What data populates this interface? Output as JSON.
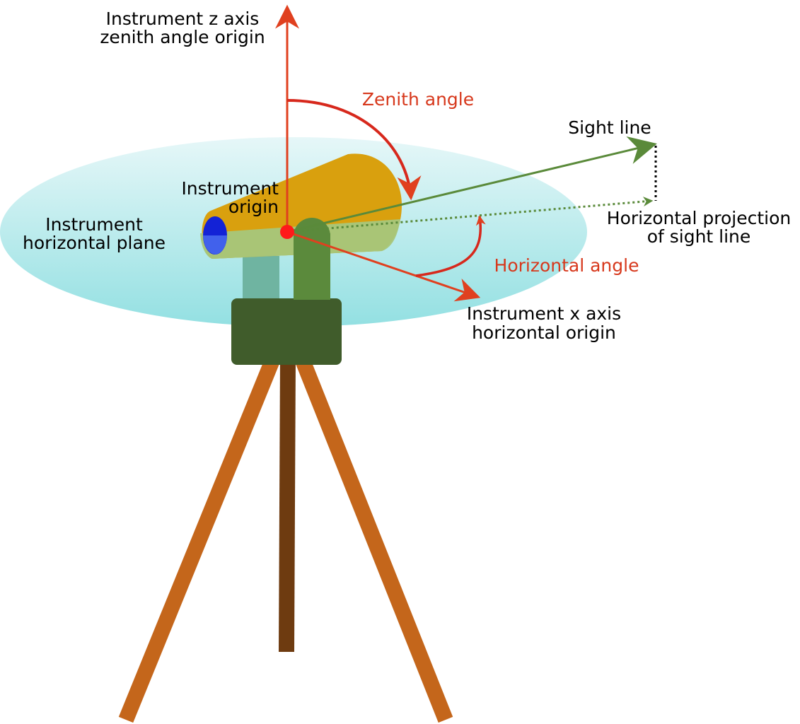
{
  "labels": {
    "z_axis_line1": "Instrument z axis",
    "z_axis_line2": "zenith angle origin",
    "zenith_angle": "Zenith angle",
    "sight_line": "Sight line",
    "instrument_origin_line1": "Instrument",
    "instrument_origin_line2": "origin",
    "horizontal_plane_line1": "Instrument",
    "horizontal_plane_line2": "horizontal plane",
    "horizontal_projection_line1": "Horizontal projection",
    "horizontal_projection_line2": "of sight line",
    "horizontal_angle": "Horizontal angle",
    "x_axis_line1": "Instrument x axis",
    "x_axis_line2": "horizontal origin"
  },
  "colors": {
    "plane": "#9fe3e6",
    "telescope_body": "#d9a00e",
    "telescope_lower": "#a7c77c",
    "lens": "#1322d6",
    "upright": "#5b8a3c",
    "base": "#405c2b",
    "tripod_leg": "#c4661b",
    "tripod_center_leg": "#6e3b10",
    "red_axis": "#e0401f",
    "angle_label": "#d7381c",
    "sight_line": "#5a8a3a"
  }
}
